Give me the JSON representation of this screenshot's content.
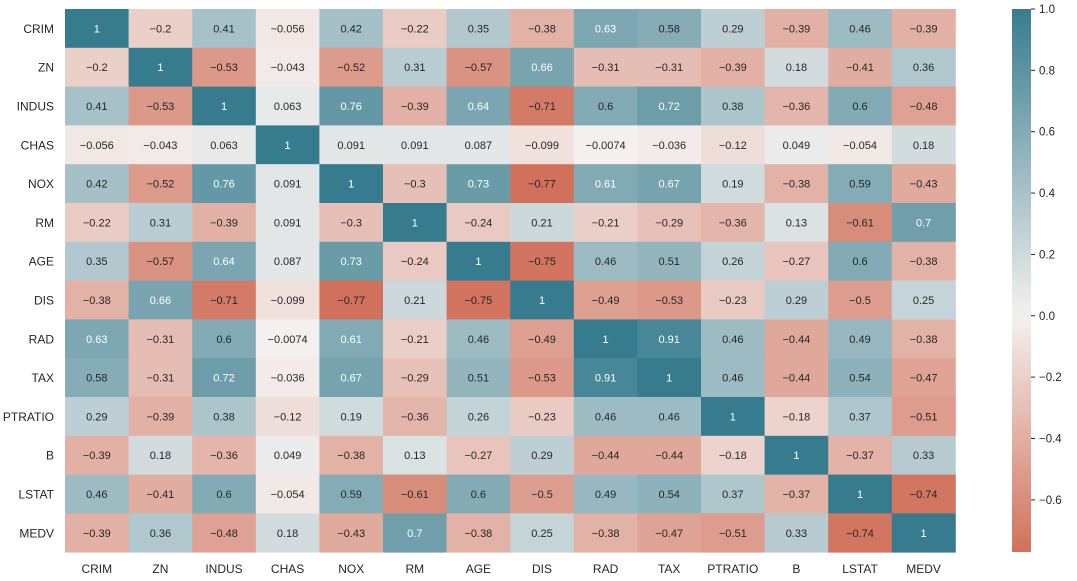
{
  "chart_data": {
    "type": "heatmap",
    "rows": [
      "CRIM",
      "ZN",
      "INDUS",
      "CHAS",
      "NOX",
      "RM",
      "AGE",
      "DIS",
      "RAD",
      "TAX",
      "PTRATIO",
      "B",
      "LSTAT",
      "MEDV"
    ],
    "columns": [
      "CRIM",
      "ZN",
      "INDUS",
      "CHAS",
      "NOX",
      "RM",
      "AGE",
      "DIS",
      "RAD",
      "TAX",
      "PTRATIO",
      "B",
      "LSTAT",
      "MEDV"
    ],
    "values": [
      [
        1,
        -0.2,
        0.41,
        -0.056,
        0.42,
        -0.22,
        0.35,
        -0.38,
        0.63,
        0.58,
        0.29,
        -0.39,
        0.46,
        -0.39
      ],
      [
        -0.2,
        1,
        -0.53,
        -0.043,
        -0.52,
        0.31,
        -0.57,
        0.66,
        -0.31,
        -0.31,
        -0.39,
        0.18,
        -0.41,
        0.36
      ],
      [
        0.41,
        -0.53,
        1,
        0.063,
        0.76,
        -0.39,
        0.64,
        -0.71,
        0.6,
        0.72,
        0.38,
        -0.36,
        0.6,
        -0.48
      ],
      [
        -0.056,
        -0.043,
        0.063,
        1,
        0.091,
        0.091,
        0.087,
        -0.099,
        -0.0074,
        -0.036,
        -0.12,
        0.049,
        -0.054,
        0.18
      ],
      [
        0.42,
        -0.52,
        0.76,
        0.091,
        1,
        -0.3,
        0.73,
        -0.77,
        0.61,
        0.67,
        0.19,
        -0.38,
        0.59,
        -0.43
      ],
      [
        -0.22,
        0.31,
        -0.39,
        0.091,
        -0.3,
        1,
        -0.24,
        0.21,
        -0.21,
        -0.29,
        -0.36,
        0.13,
        -0.61,
        0.7
      ],
      [
        0.35,
        -0.57,
        0.64,
        0.087,
        0.73,
        -0.24,
        1,
        -0.75,
        0.46,
        0.51,
        0.26,
        -0.27,
        0.6,
        -0.38
      ],
      [
        -0.38,
        0.66,
        -0.71,
        -0.099,
        -0.77,
        0.21,
        -0.75,
        1,
        -0.49,
        -0.53,
        -0.23,
        0.29,
        -0.5,
        0.25
      ],
      [
        0.63,
        -0.31,
        0.6,
        -0.0074,
        0.61,
        -0.21,
        0.46,
        -0.49,
        1,
        0.91,
        0.46,
        -0.44,
        0.49,
        -0.38
      ],
      [
        0.58,
        -0.31,
        0.72,
        -0.036,
        0.67,
        -0.29,
        0.51,
        -0.53,
        0.91,
        1,
        0.46,
        -0.44,
        0.54,
        -0.47
      ],
      [
        0.29,
        -0.39,
        0.38,
        -0.12,
        0.19,
        -0.36,
        0.26,
        -0.23,
        0.46,
        0.46,
        1,
        -0.18,
        0.37,
        -0.51
      ],
      [
        -0.39,
        0.18,
        -0.36,
        0.049,
        -0.38,
        0.13,
        -0.27,
        0.29,
        -0.44,
        -0.44,
        -0.18,
        1,
        -0.37,
        0.33
      ],
      [
        0.46,
        -0.41,
        0.6,
        -0.054,
        0.59,
        -0.61,
        0.6,
        -0.5,
        0.49,
        0.54,
        0.37,
        -0.37,
        1,
        -0.74
      ],
      [
        -0.39,
        0.36,
        -0.48,
        0.18,
        -0.43,
        0.7,
        -0.38,
        0.25,
        -0.38,
        -0.47,
        -0.51,
        0.33,
        -0.74,
        1
      ]
    ],
    "colorbar": {
      "range": [
        -0.77,
        1.0
      ],
      "ticks": [
        1.0,
        0.8,
        0.6,
        0.4,
        0.2,
        0.0,
        -0.2,
        -0.4,
        -0.6
      ],
      "tick_labels": [
        "1.0",
        "0.8",
        "0.6",
        "0.4",
        "0.2",
        "0.0",
        "−0.2",
        "−0.4",
        "−0.6"
      ],
      "negative_color": "#d1715b",
      "center_color": "#f4f1f0",
      "positive_color": "#377c8e"
    },
    "annotation_dark_color": "#262626",
    "annotation_light_color": "#ffffff"
  }
}
